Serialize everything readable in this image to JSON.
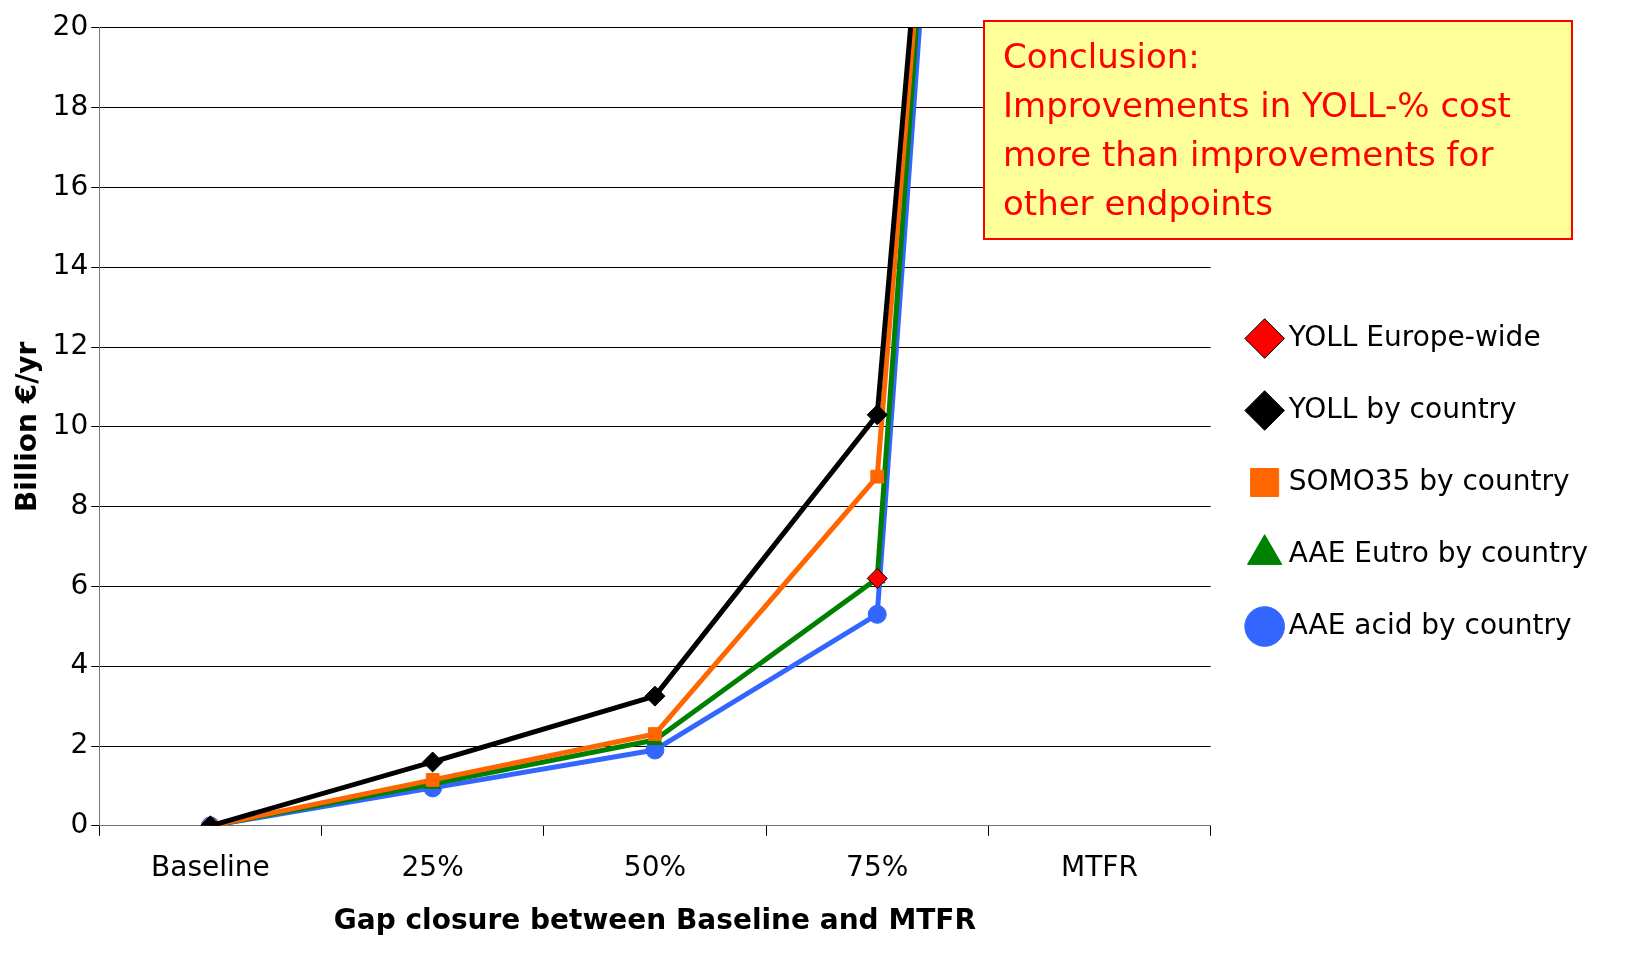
{
  "chart_data": {
    "type": "line",
    "xlabel": "Gap closure between Baseline and MTFR",
    "ylabel": "Billion €/yr",
    "xlim": [
      -12.5,
      112.5
    ],
    "xticks": [
      {
        "value": -12.5,
        "label": null
      },
      {
        "value": 0,
        "label": "Baseline"
      },
      {
        "value": 12.5,
        "label": null
      },
      {
        "value": 25,
        "label": "25%"
      },
      {
        "value": 37.5,
        "label": null
      },
      {
        "value": 50,
        "label": "50%"
      },
      {
        "value": 62.5,
        "label": null
      },
      {
        "value": 75,
        "label": "75%"
      },
      {
        "value": 87.5,
        "label": null
      },
      {
        "value": 100,
        "label": "MTFR"
      },
      {
        "value": 112.5,
        "label": null
      }
    ],
    "ylim": [
      0,
      20
    ],
    "yticks": [
      0,
      2,
      4,
      6,
      8,
      10,
      12,
      14,
      16,
      18,
      20
    ],
    "grid": "y",
    "legend": "right",
    "annotations": [
      "Conclusion:\nImprovements in YOLL-% cost more than improvements for other endpoints"
    ],
    "series": [
      {
        "name": "YOLL by country",
        "color": "#000000",
        "marker": "diamond",
        "x": [
          0,
          25,
          50,
          75,
          78.75
        ],
        "values": [
          0,
          1.6,
          3.25,
          10.3,
          20
        ]
      },
      {
        "name": "SOMO35 by country",
        "color": "#ff6600",
        "marker": "square",
        "x": [
          0,
          25,
          50,
          75,
          79.1
        ],
        "values": [
          0,
          1.15,
          2.3,
          8.75,
          20
        ]
      },
      {
        "name": "AAE Eutro by country",
        "color": "#008000",
        "marker": "triangle",
        "x": [
          0,
          25,
          50,
          75,
          79.4
        ],
        "values": [
          0,
          1.05,
          2.15,
          6.2,
          20
        ]
      },
      {
        "name": "AAE acid by country",
        "color": "#3366ff",
        "marker": "circle",
        "x": [
          0,
          25,
          50,
          75,
          79.75
        ],
        "values": [
          0,
          0.95,
          1.9,
          5.3,
          20
        ]
      },
      {
        "name": "YOLL Europe-wide",
        "type": "scatter",
        "color": "#ff0000",
        "marker": "diamond",
        "x": [
          75
        ],
        "values": [
          6.2
        ]
      }
    ]
  }
}
